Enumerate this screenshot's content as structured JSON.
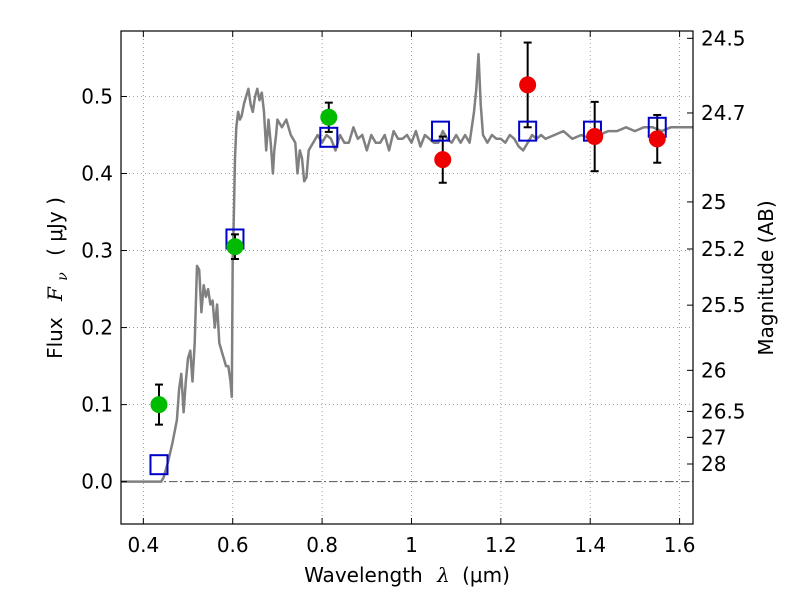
{
  "chart_data": {
    "type": "scatter",
    "xlabel_prefix": "Wavelength",
    "xlabel_symbol": "λ",
    "xlabel_unit": "(μm)",
    "ylabel_prefix": "Flux",
    "ylabel_symbol": "F",
    "ylabel_subscript": "ν",
    "ylabel_unit": "( μJy )",
    "y2label": "Magnitude (AB)",
    "xlim": [
      0.35,
      1.63
    ],
    "ylim": [
      -0.055,
      0.585
    ],
    "xticks": [
      0.4,
      0.6,
      0.8,
      1.0,
      1.2,
      1.4,
      1.6
    ],
    "xtick_labels": [
      "0.4",
      "0.6",
      "0.8",
      "1",
      "1.2",
      "1.4",
      "1.6"
    ],
    "yticks": [
      0.0,
      0.1,
      0.2,
      0.3,
      0.4,
      0.5
    ],
    "ytick_labels": [
      "0.0",
      "0.1",
      "0.2",
      "0.3",
      "0.4",
      "0.5"
    ],
    "mag_ticks": [
      {
        "label": "24.5",
        "flux": 0.5755
      },
      {
        "label": "24.7",
        "flux": 0.4786
      },
      {
        "label": "25",
        "flux": 0.3631
      },
      {
        "label": "25.2",
        "flux": 0.302
      },
      {
        "label": "25.5",
        "flux": 0.2291
      },
      {
        "label": "26",
        "flux": 0.1445
      },
      {
        "label": "26.5",
        "flux": 0.0912
      },
      {
        "label": "27",
        "flux": 0.0575
      },
      {
        "label": "28",
        "flux": 0.0229
      }
    ],
    "grid": true,
    "colors": {
      "model": "#808080",
      "green": "#00bb00",
      "red": "#ee0000",
      "square": "#0000cc",
      "errorbar": "#000000"
    },
    "model_spectrum": {
      "x": [
        0.35,
        0.44,
        0.445,
        0.455,
        0.465,
        0.475,
        0.48,
        0.485,
        0.49,
        0.495,
        0.5,
        0.505,
        0.51,
        0.515,
        0.52,
        0.525,
        0.53,
        0.535,
        0.54,
        0.545,
        0.55,
        0.555,
        0.56,
        0.565,
        0.57,
        0.575,
        0.58,
        0.585,
        0.59,
        0.595,
        0.598,
        0.6,
        0.602,
        0.605,
        0.608,
        0.612,
        0.616,
        0.62,
        0.625,
        0.63,
        0.635,
        0.64,
        0.645,
        0.65,
        0.655,
        0.66,
        0.665,
        0.67,
        0.675,
        0.68,
        0.685,
        0.69,
        0.693,
        0.697,
        0.7,
        0.71,
        0.72,
        0.73,
        0.74,
        0.745,
        0.75,
        0.755,
        0.76,
        0.765,
        0.77,
        0.775,
        0.78,
        0.79,
        0.8,
        0.81,
        0.82,
        0.83,
        0.84,
        0.85,
        0.86,
        0.87,
        0.88,
        0.89,
        0.9,
        0.91,
        0.92,
        0.93,
        0.94,
        0.95,
        0.96,
        0.97,
        0.98,
        0.99,
        1.0,
        1.01,
        1.02,
        1.03,
        1.04,
        1.05,
        1.06,
        1.07,
        1.08,
        1.09,
        1.1,
        1.11,
        1.12,
        1.13,
        1.14,
        1.145,
        1.15,
        1.155,
        1.16,
        1.17,
        1.18,
        1.19,
        1.2,
        1.21,
        1.22,
        1.23,
        1.24,
        1.25,
        1.26,
        1.27,
        1.28,
        1.29,
        1.3,
        1.32,
        1.34,
        1.36,
        1.38,
        1.4,
        1.42,
        1.44,
        1.46,
        1.48,
        1.5,
        1.52,
        1.54,
        1.56,
        1.58,
        1.6,
        1.63
      ],
      "y": [
        0.0,
        0.0,
        0.005,
        0.025,
        0.05,
        0.08,
        0.12,
        0.14,
        0.09,
        0.13,
        0.16,
        0.17,
        0.13,
        0.18,
        0.28,
        0.275,
        0.22,
        0.255,
        0.24,
        0.25,
        0.23,
        0.235,
        0.2,
        0.23,
        0.18,
        0.17,
        0.16,
        0.15,
        0.15,
        0.13,
        0.11,
        0.29,
        0.33,
        0.42,
        0.46,
        0.48,
        0.47,
        0.475,
        0.49,
        0.5,
        0.51,
        0.49,
        0.48,
        0.5,
        0.51,
        0.495,
        0.505,
        0.48,
        0.43,
        0.47,
        0.44,
        0.4,
        0.43,
        0.45,
        0.47,
        0.46,
        0.47,
        0.45,
        0.44,
        0.4,
        0.43,
        0.42,
        0.39,
        0.395,
        0.43,
        0.435,
        0.44,
        0.45,
        0.44,
        0.45,
        0.445,
        0.43,
        0.45,
        0.44,
        0.44,
        0.46,
        0.445,
        0.45,
        0.43,
        0.45,
        0.44,
        0.44,
        0.45,
        0.43,
        0.455,
        0.445,
        0.445,
        0.45,
        0.44,
        0.455,
        0.435,
        0.45,
        0.445,
        0.44,
        0.44,
        0.455,
        0.445,
        0.44,
        0.45,
        0.44,
        0.45,
        0.44,
        0.48,
        0.51,
        0.555,
        0.49,
        0.45,
        0.44,
        0.45,
        0.445,
        0.445,
        0.44,
        0.45,
        0.445,
        0.435,
        0.43,
        0.44,
        0.45,
        0.445,
        0.45,
        0.445,
        0.45,
        0.455,
        0.445,
        0.45,
        0.445,
        0.45,
        0.455,
        0.455,
        0.46,
        0.455,
        0.46,
        0.46,
        0.455,
        0.46,
        0.46,
        0.46
      ]
    },
    "series": [
      {
        "marker": "square",
        "x": [
          0.435,
          0.605,
          0.815,
          1.065,
          1.26,
          1.405,
          1.55
        ],
        "y": [
          0.022,
          0.315,
          0.447,
          0.455,
          0.455,
          0.455,
          0.46
        ]
      },
      {
        "marker": "circle",
        "color_key": "green",
        "x": [
          0.435,
          0.605,
          0.815
        ],
        "y": [
          0.1,
          0.305,
          0.473
        ],
        "err": [
          0.026,
          0.016,
          0.019
        ]
      },
      {
        "marker": "circle",
        "color_key": "red",
        "x": [
          1.07,
          1.26,
          1.41,
          1.55
        ],
        "y": [
          0.418,
          0.515,
          0.448,
          0.445
        ],
        "err": [
          0.03,
          0.055,
          0.045,
          0.031
        ]
      }
    ]
  }
}
